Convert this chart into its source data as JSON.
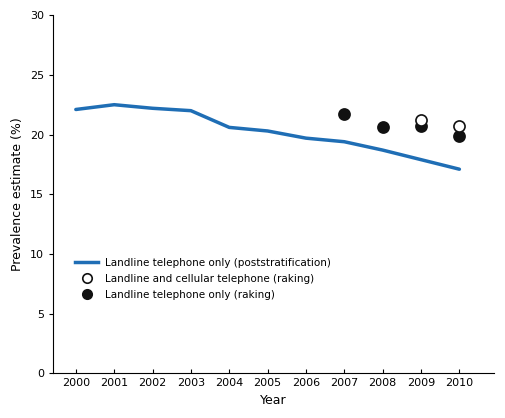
{
  "landline_poststrat_years": [
    2000,
    2001,
    2002,
    2003,
    2004,
    2005,
    2006,
    2007,
    2008,
    2009,
    2010
  ],
  "landline_poststrat_values": [
    22.1,
    22.5,
    22.2,
    22.0,
    20.6,
    20.3,
    19.7,
    19.4,
    18.7,
    17.9,
    17.1
  ],
  "landline_cellular_raking_years": [
    2009,
    2010
  ],
  "landline_cellular_raking_values": [
    21.2,
    20.7
  ],
  "landline_only_raking_years": [
    2007,
    2008,
    2009,
    2010
  ],
  "landline_only_raking_values": [
    21.7,
    20.6,
    20.7,
    19.9
  ],
  "line_color": "#1f6eb5",
  "line_width": 2.5,
  "marker_size": 8,
  "filled_marker_color": "#111111",
  "open_marker_color": "#111111",
  "xlabel": "Year",
  "ylabel": "Prevalence estimate (%)",
  "ylim": [
    0,
    30
  ],
  "xlim": [
    1999.4,
    2010.9
  ],
  "yticks": [
    0,
    5,
    10,
    15,
    20,
    25,
    30
  ],
  "xticks": [
    2000,
    2001,
    2002,
    2003,
    2004,
    2005,
    2006,
    2007,
    2008,
    2009,
    2010
  ],
  "legend_line_label": "Landline telephone only (poststratification)",
  "legend_open_label": "Landline and cellular telephone (raking)",
  "legend_filled_label": "Landline telephone only (raking)",
  "tick_fontsize": 8,
  "label_fontsize": 9
}
